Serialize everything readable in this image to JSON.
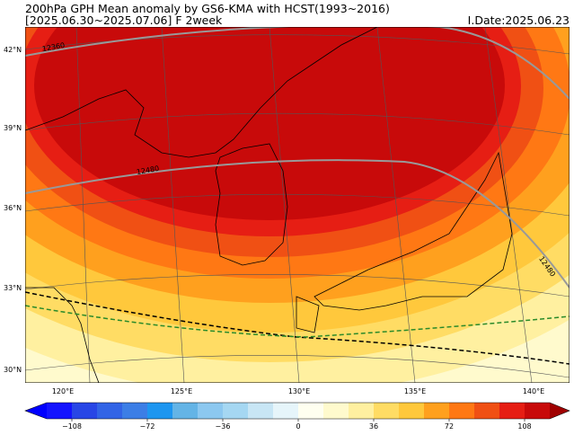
{
  "header": {
    "title": "200hPa GPH Mean anomaly by GS6-KMA with HCST(1993~2016)",
    "subtitle": "[2025.06.30~2025.07.06] F 2week",
    "init_date": "I.Date:2025.06.23"
  },
  "map": {
    "lat_labels": [
      "42°N",
      "39°N",
      "36°N",
      "33°N",
      "30°N"
    ],
    "lon_labels": [
      "120°E",
      "125°E",
      "130°E",
      "135°E",
      "140°E"
    ],
    "contour_labels": [
      "12360",
      "12480",
      "12480"
    ]
  },
  "colorbar": {
    "clim": [
      -120,
      120
    ],
    "colors": [
      "#1414ff",
      "#2846e6",
      "#3264e6",
      "#3c7ee6",
      "#1e96f0",
      "#64b4e6",
      "#8cc8f0",
      "#a5d7f2",
      "#c8e6f5",
      "#e6f5fa",
      "#fffff0",
      "#fffacd",
      "#fff0a0",
      "#ffdc64",
      "#ffc83c",
      "#ffa01e",
      "#ff7814",
      "#f05014",
      "#e61e14",
      "#c80a0a"
    ],
    "ticks": [
      {
        "value": -108,
        "label": "−108"
      },
      {
        "value": -72,
        "label": "−72"
      },
      {
        "value": -36,
        "label": "−36"
      },
      0,
      36,
      72,
      108
    ]
  }
}
